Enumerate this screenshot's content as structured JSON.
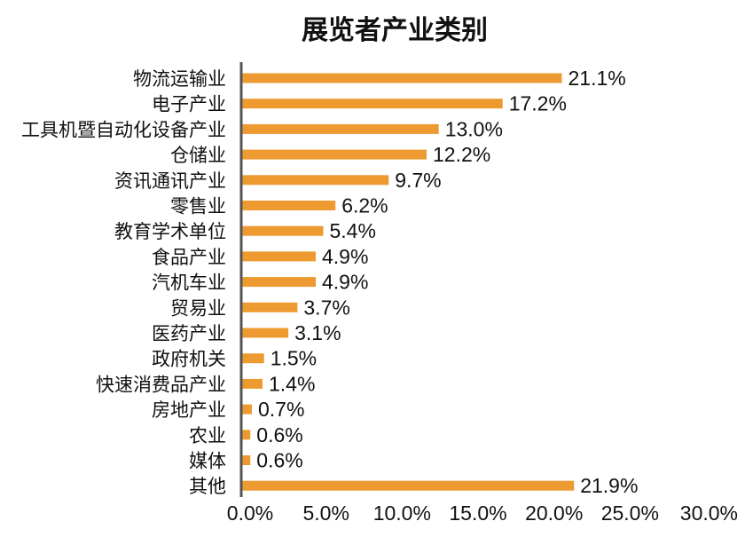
{
  "colors": {
    "bar": "#ED9A30",
    "axis": "#555555",
    "text": "#111111"
  },
  "chart_data": {
    "type": "bar",
    "orientation": "horizontal",
    "title": "展览者产业类别",
    "categories": [
      "物流运输业",
      "电子产业",
      "工具机暨自动化设备产业",
      "仓储业",
      "资讯通讯产业",
      "零售业",
      "教育学术单位",
      "食品产业",
      "汽机车业",
      "贸易业",
      "医药产业",
      "政府机关",
      "快速消费品产业",
      "房地产业",
      "农业",
      "媒体",
      "其他"
    ],
    "values": [
      21.1,
      17.2,
      13.0,
      12.2,
      9.7,
      6.2,
      5.4,
      4.9,
      4.9,
      3.7,
      3.1,
      1.5,
      1.4,
      0.7,
      0.6,
      0.6,
      21.9
    ],
    "value_labels": [
      "21.1%",
      "17.2%",
      "13.0%",
      "12.2%",
      "9.7%",
      "6.2%",
      "5.4%",
      "4.9%",
      "4.9%",
      "3.7%",
      "3.1%",
      "1.5%",
      "1.4%",
      "0.7%",
      "0.6%",
      "0.6%",
      "21.9%"
    ],
    "xticks": [
      0,
      5,
      10,
      15,
      20,
      25,
      30
    ],
    "xtick_labels": [
      "0.0%",
      "5.0%",
      "10.0%",
      "15.0%",
      "20.0%",
      "25.0%",
      "30.0%"
    ],
    "xlim": [
      0,
      30
    ],
    "grid": false,
    "legend": "none"
  }
}
